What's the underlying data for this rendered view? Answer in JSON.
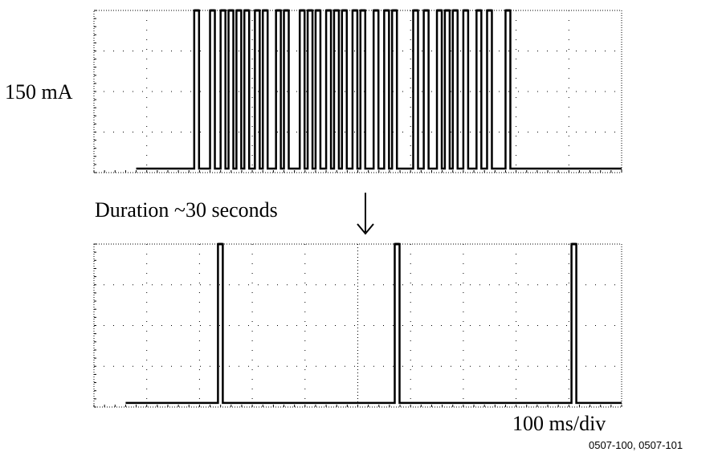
{
  "labels": {
    "y_scale": "150 mA",
    "duration": "Duration ~30 seconds",
    "timebase": "100 ms/div",
    "figure_id": "0507-100, 0507-101"
  },
  "chart_data": [
    {
      "type": "line",
      "title": "",
      "ylabel": "150 mA",
      "xlabel": "",
      "divisions": {
        "x": 10,
        "y": 4
      },
      "grid": true,
      "series": [
        {
          "baseline": 0.1,
          "pulse_level": 4.0,
          "trace_start_div": 0.8,
          "pulses_div": [
            1.9,
            2.2,
            2.4,
            2.55,
            2.7,
            2.85,
            3.05,
            3.2,
            3.45,
            3.6,
            3.9,
            4.05,
            4.2,
            4.4,
            4.55,
            4.7,
            4.9,
            5.05,
            5.3,
            5.5,
            5.65,
            6.05,
            6.25,
            6.5,
            6.65,
            6.8,
            7.0,
            7.25,
            7.45,
            7.8
          ]
        }
      ]
    },
    {
      "type": "line",
      "title": "",
      "xlabel": "100 ms/div",
      "ylabel": "",
      "divisions": {
        "x": 10,
        "y": 4
      },
      "grid": true,
      "series": [
        {
          "baseline": 0.1,
          "pulse_level": 4.0,
          "trace_start_div": 0.6,
          "pulses_div": [
            2.35,
            5.7,
            9.05
          ]
        }
      ]
    }
  ]
}
